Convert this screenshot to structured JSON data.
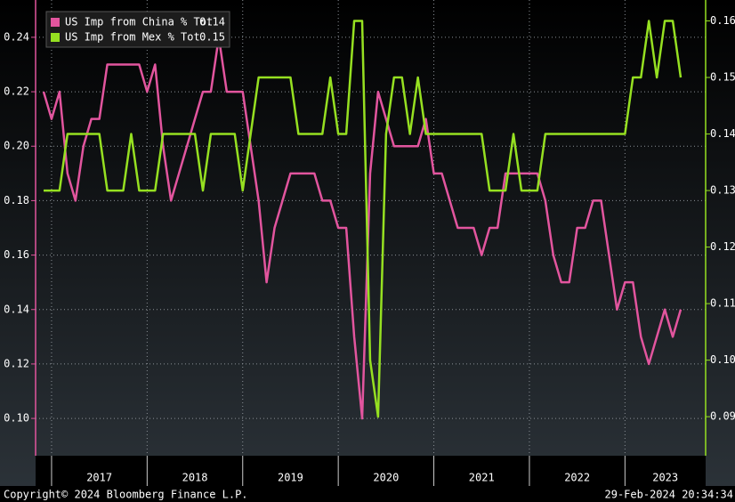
{
  "chart_data": {
    "type": "line",
    "categories": [
      null,
      null,
      null,
      null,
      null,
      null,
      null,
      "2017",
      null,
      null,
      null,
      null,
      null,
      null,
      null,
      null,
      null,
      null,
      null,
      "2018",
      null,
      null,
      null,
      null,
      null,
      null,
      null,
      null,
      null,
      null,
      null,
      "2019",
      null,
      null,
      null,
      null,
      null,
      null,
      null,
      null,
      null,
      null,
      null,
      "2020",
      null,
      null,
      null,
      null,
      null,
      null,
      null,
      null,
      null,
      null,
      null,
      "2021",
      null,
      null,
      null,
      null,
      null,
      null,
      null,
      null,
      null,
      null,
      null,
      "2022",
      null,
      null,
      null,
      null,
      null,
      null,
      null,
      null,
      null,
      null,
      null,
      "2023",
      null
    ],
    "series": [
      {
        "name": "US Imp from China % Tot",
        "last": 0.14,
        "color": "#e2559e",
        "values": [
          0.22,
          0.21,
          0.22,
          0.19,
          0.18,
          0.2,
          0.21,
          0.21,
          0.23,
          0.23,
          0.23,
          0.23,
          0.23,
          0.22,
          0.23,
          0.2,
          0.18,
          0.19,
          0.2,
          0.21,
          0.22,
          0.22,
          0.24,
          0.22,
          0.22,
          0.22,
          0.2,
          0.18,
          0.15,
          0.17,
          0.18,
          0.19,
          0.19,
          0.19,
          0.19,
          0.18,
          0.18,
          0.17,
          0.17,
          0.13,
          0.1,
          0.19,
          0.22,
          0.21,
          0.2,
          0.2,
          0.2,
          0.2,
          0.21,
          0.19,
          0.19,
          0.18,
          0.17,
          0.17,
          0.17,
          0.16,
          0.17,
          0.17,
          0.19,
          0.19,
          0.19,
          0.19,
          0.19,
          0.18,
          0.16,
          0.15,
          0.15,
          0.17,
          0.17,
          0.18,
          0.18,
          0.16,
          0.14,
          0.15,
          0.15,
          0.13,
          0.12,
          0.13,
          0.14,
          0.13,
          0.14
        ]
      },
      {
        "name": "US Imp from Mex % Tot",
        "last": 0.15,
        "color": "#96e021",
        "axis": "y2",
        "values": [
          0.13,
          0.13,
          0.13,
          0.14,
          0.14,
          0.14,
          0.14,
          0.14,
          0.13,
          0.13,
          0.13,
          0.14,
          0.13,
          0.13,
          0.13,
          0.14,
          0.14,
          0.14,
          0.14,
          0.14,
          0.13,
          0.14,
          0.14,
          0.14,
          0.14,
          0.13,
          0.14,
          0.15,
          0.15,
          0.15,
          0.15,
          0.15,
          0.14,
          0.14,
          0.14,
          0.14,
          0.15,
          0.14,
          0.14,
          0.16,
          0.16,
          0.1,
          0.09,
          0.14,
          0.15,
          0.15,
          0.14,
          0.15,
          0.14,
          0.14,
          0.14,
          0.14,
          0.14,
          0.14,
          0.14,
          0.14,
          0.13,
          0.13,
          0.13,
          0.14,
          0.13,
          0.13,
          0.13,
          0.14,
          0.14,
          0.14,
          0.14,
          0.14,
          0.14,
          0.14,
          0.14,
          0.14,
          0.14,
          0.14,
          0.15,
          0.15,
          0.16,
          0.15,
          0.16,
          0.16,
          0.15
        ]
      }
    ],
    "ylim": [
      0.0863,
      0.2537
    ],
    "yticks": [
      {
        "value": 0.1,
        "label": "0.10"
      },
      0.12,
      0.14,
      0.16,
      0.18,
      {
        "value": 0.2,
        "label": "0.20"
      },
      0.22,
      0.24
    ],
    "y2lim": [
      0.0831,
      0.1637
    ],
    "y2ticks": [
      0.09,
      {
        "value": 0.1,
        "label": "0.10"
      },
      0.11,
      0.12,
      0.13,
      0.14,
      0.15,
      0.16
    ],
    "grid": true,
    "legend": "upper left",
    "footer_left": "Copyright© 2024 Bloomberg Finance L.P.",
    "footer_right": "29-Feb-2024 20:34:34"
  }
}
